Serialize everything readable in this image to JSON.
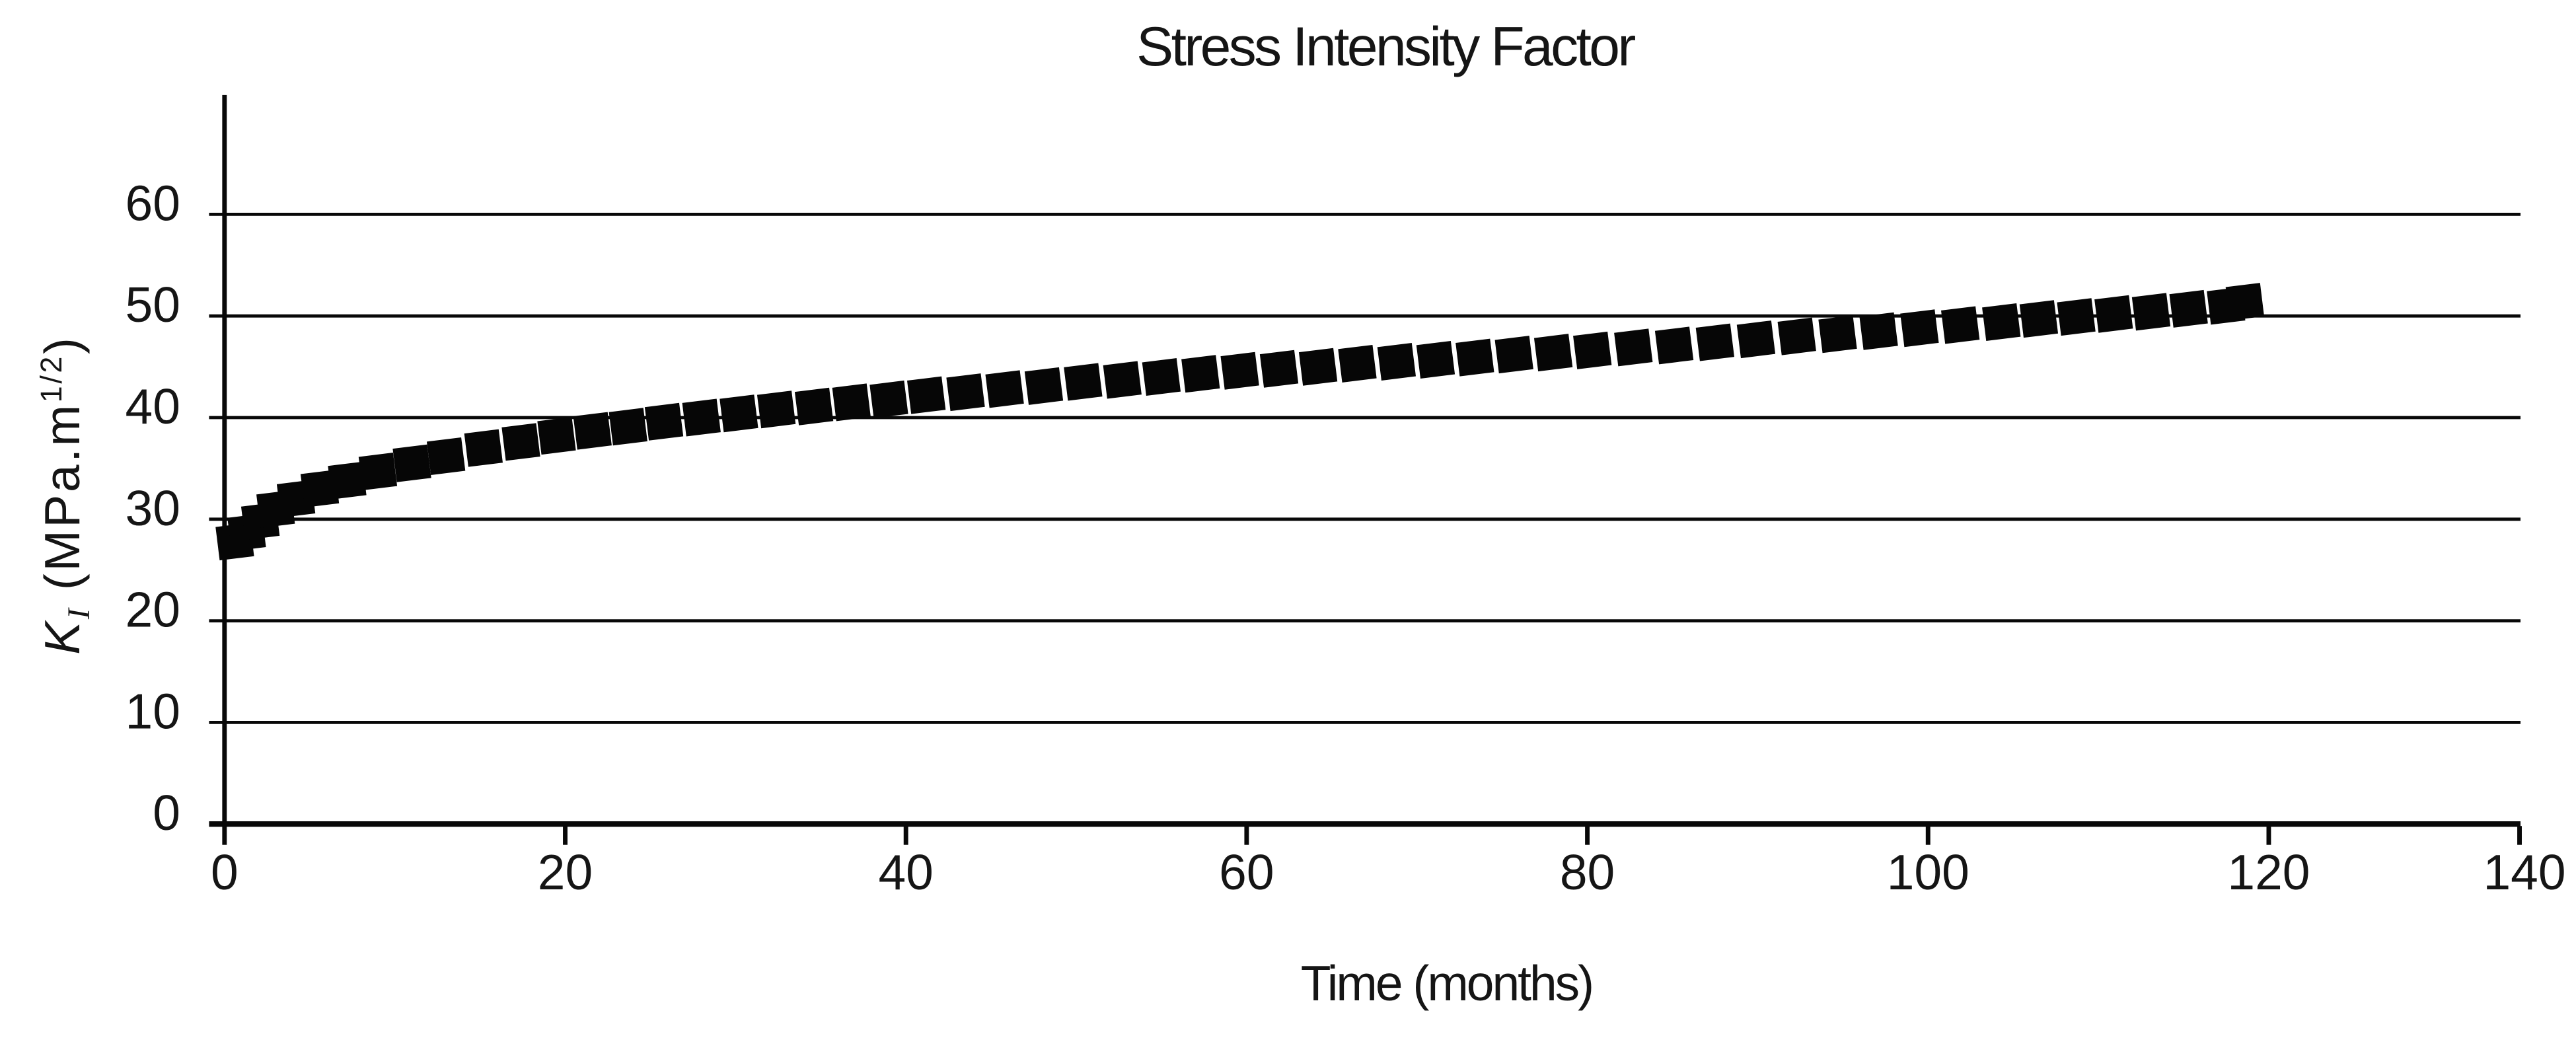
{
  "page": {
    "background": "#ffffff"
  },
  "chart_data": {
    "type": "scatter",
    "title": "Stress Intensity Factor",
    "xlabel": "Time (months)",
    "ylabel": "K_I (MPa.m^1/2)",
    "ylabel_parts": {
      "symbol": "K",
      "symbol_sub": "I",
      "unit_open": " (MPa.m",
      "unit_exp": "1/2",
      "unit_close": ")"
    },
    "xlim": [
      0,
      140
    ],
    "ylim": [
      0,
      60
    ],
    "x_ticks": [
      0,
      20,
      40,
      60,
      80,
      100,
      120,
      140
    ],
    "y_ticks": [
      0,
      10,
      20,
      30,
      40,
      50,
      60
    ],
    "grid": "horizontal-only",
    "legend": "none",
    "style": {
      "background": "#ffffff",
      "text_color": "#151515",
      "line_color": "#080808",
      "marker_color": "#060606",
      "marker_shape": "tilted-square",
      "marker_tilt_deg": -7
    },
    "series": [
      {
        "name": "K_I (MPa.m^1/2)",
        "points": [
          [
            0.6,
            27.8
          ],
          [
            1.3,
            28.7
          ],
          [
            2.1,
            29.8
          ],
          [
            3,
            31
          ],
          [
            4.2,
            32
          ],
          [
            5.6,
            33
          ],
          [
            7.2,
            33.8
          ],
          [
            9,
            34.7
          ],
          [
            11,
            35.5
          ],
          [
            13,
            36.2
          ],
          [
            15.2,
            37
          ],
          [
            17.4,
            37.6
          ],
          [
            19.5,
            38.2
          ],
          [
            21.6,
            38.7
          ],
          [
            23.7,
            39.1
          ],
          [
            25.8,
            39.6
          ],
          [
            28,
            40
          ],
          [
            30.2,
            40.4
          ],
          [
            32.4,
            40.8
          ],
          [
            34.6,
            41.1
          ],
          [
            36.8,
            41.5
          ],
          [
            39,
            41.8
          ],
          [
            41.2,
            42.2
          ],
          [
            43.5,
            42.5
          ],
          [
            45.8,
            42.8
          ],
          [
            48.1,
            43.1
          ],
          [
            50.4,
            43.5
          ],
          [
            52.7,
            43.7
          ],
          [
            55,
            44
          ],
          [
            57.3,
            44.3
          ],
          [
            59.6,
            44.6
          ],
          [
            61.9,
            44.8
          ],
          [
            64.2,
            45
          ],
          [
            66.5,
            45.3
          ],
          [
            68.8,
            45.5
          ],
          [
            71.1,
            45.7
          ],
          [
            73.4,
            45.9
          ],
          [
            75.7,
            46.2
          ],
          [
            78,
            46.4
          ],
          [
            80.3,
            46.6
          ],
          [
            82.7,
            46.9
          ],
          [
            85.1,
            47.1
          ],
          [
            87.5,
            47.4
          ],
          [
            89.9,
            47.7
          ],
          [
            92.3,
            48
          ],
          [
            94.7,
            48.2
          ],
          [
            97.1,
            48.5
          ],
          [
            99.5,
            48.8
          ],
          [
            101.9,
            49.1
          ],
          [
            104.3,
            49.4
          ],
          [
            106.5,
            49.7
          ],
          [
            108.7,
            49.9
          ],
          [
            110.9,
            50.2
          ],
          [
            113.1,
            50.4
          ],
          [
            115.3,
            50.7
          ],
          [
            117.5,
            51
          ],
          [
            118.6,
            51.4
          ]
        ]
      }
    ]
  }
}
